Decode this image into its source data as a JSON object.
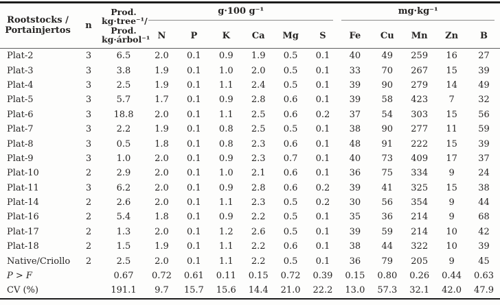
{
  "page": {
    "background_color": "#fdfdfc",
    "text_color": "#262423",
    "heavy_rule_color": "#1b1b1b",
    "light_rule_color": "#8a8a8a"
  },
  "table": {
    "header": {
      "rootstocks": "Rootstocks /\nPortainjertos",
      "n": "n",
      "prod": "Prod.\nkg·tree⁻¹/\nProd.\nkg·árbol⁻¹",
      "group_g100": "g·100 g⁻¹",
      "group_mgkg": "mg·kg⁻¹",
      "nutrient_cols": [
        "N",
        "P",
        "K",
        "Ca",
        "Mg",
        "S",
        "Fe",
        "Cu",
        "Mn",
        "Zn",
        "B"
      ]
    },
    "rows": [
      {
        "label": "Plat-2",
        "n": "3",
        "prod": "6.5",
        "values": [
          "2.0",
          "0.1",
          "0.9",
          "1.9",
          "0.5",
          "0.1",
          "40",
          "49",
          "259",
          "16",
          "27"
        ]
      },
      {
        "label": "Plat-3",
        "n": "3",
        "prod": "3.8",
        "values": [
          "1.9",
          "0.1",
          "1.0",
          "2.0",
          "0.5",
          "0.1",
          "33",
          "70",
          "267",
          "15",
          "39"
        ]
      },
      {
        "label": "Plat-4",
        "n": "3",
        "prod": "2.5",
        "values": [
          "1.9",
          "0.1",
          "1.1",
          "2.4",
          "0.5",
          "0.1",
          "39",
          "90",
          "279",
          "14",
          "49"
        ]
      },
      {
        "label": "Plat-5",
        "n": "3",
        "prod": "5.7",
        "values": [
          "1.7",
          "0.1",
          "0.9",
          "2.8",
          "0.6",
          "0.1",
          "39",
          "58",
          "423",
          "7",
          "32"
        ]
      },
      {
        "label": "Plat-6",
        "n": "3",
        "prod": "18.8",
        "values": [
          "2.0",
          "0.1",
          "1.1",
          "2.5",
          "0.6",
          "0.2",
          "37",
          "54",
          "303",
          "15",
          "56"
        ]
      },
      {
        "label": "Plat-7",
        "n": "3",
        "prod": "2.2",
        "values": [
          "1.9",
          "0.1",
          "0.8",
          "2.5",
          "0.5",
          "0.1",
          "38",
          "90",
          "277",
          "11",
          "59"
        ]
      },
      {
        "label": "Plat-8",
        "n": "3",
        "prod": "0.5",
        "values": [
          "1.8",
          "0.1",
          "0.8",
          "2.3",
          "0.6",
          "0.1",
          "48",
          "91",
          "222",
          "15",
          "39"
        ]
      },
      {
        "label": "Plat-9",
        "n": "3",
        "prod": "1.0",
        "values": [
          "2.0",
          "0.1",
          "0.9",
          "2.3",
          "0.7",
          "0.1",
          "40",
          "73",
          "409",
          "17",
          "37"
        ]
      },
      {
        "label": "Plat-10",
        "n": "2",
        "prod": "2.9",
        "values": [
          "2.0",
          "0.1",
          "1.0",
          "2.1",
          "0.6",
          "0.1",
          "36",
          "75",
          "334",
          "9",
          "24"
        ]
      },
      {
        "label": "Plat-11",
        "n": "3",
        "prod": "6.2",
        "values": [
          "2.0",
          "0.1",
          "0.9",
          "2.8",
          "0.6",
          "0.2",
          "39",
          "41",
          "325",
          "15",
          "38"
        ]
      },
      {
        "label": "Plat-14",
        "n": "2",
        "prod": "2.6",
        "values": [
          "2.0",
          "0.1",
          "1.1",
          "2.3",
          "0.5",
          "0.2",
          "30",
          "56",
          "354",
          "9",
          "44"
        ]
      },
      {
        "label": "Plat-16",
        "n": "2",
        "prod": "5.4",
        "values": [
          "1.8",
          "0.1",
          "0.9",
          "2.2",
          "0.5",
          "0.1",
          "35",
          "36",
          "214",
          "9",
          "68"
        ]
      },
      {
        "label": "Plat-17",
        "n": "2",
        "prod": "1.3",
        "values": [
          "2.0",
          "0.1",
          "1.2",
          "2.6",
          "0.5",
          "0.1",
          "39",
          "59",
          "214",
          "10",
          "42"
        ]
      },
      {
        "label": "Plat-18",
        "n": "2",
        "prod": "1.5",
        "values": [
          "1.9",
          "0.1",
          "1.1",
          "2.2",
          "0.6",
          "0.1",
          "38",
          "44",
          "322",
          "10",
          "39"
        ]
      },
      {
        "label": "Native/Criollo",
        "n": "2",
        "prod": "2.5",
        "values": [
          "2.0",
          "0.1",
          "1.1",
          "2.2",
          "0.5",
          "0.1",
          "36",
          "79",
          "205",
          "9",
          "45"
        ]
      },
      {
        "label": "P > F",
        "n": "",
        "prod": "0.67",
        "italic": true,
        "values": [
          "0.72",
          "0.61",
          "0.11",
          "0.15",
          "0.72",
          "0.39",
          "0.15",
          "0.80",
          "0.26",
          "0.44",
          "0.63"
        ]
      },
      {
        "label": "CV (%)",
        "n": "",
        "prod": "191.1",
        "values": [
          "9.7",
          "15.7",
          "15.6",
          "14.4",
          "21.0",
          "22.2",
          "13.0",
          "57.3",
          "32.1",
          "42.0",
          "47.9"
        ]
      }
    ]
  }
}
